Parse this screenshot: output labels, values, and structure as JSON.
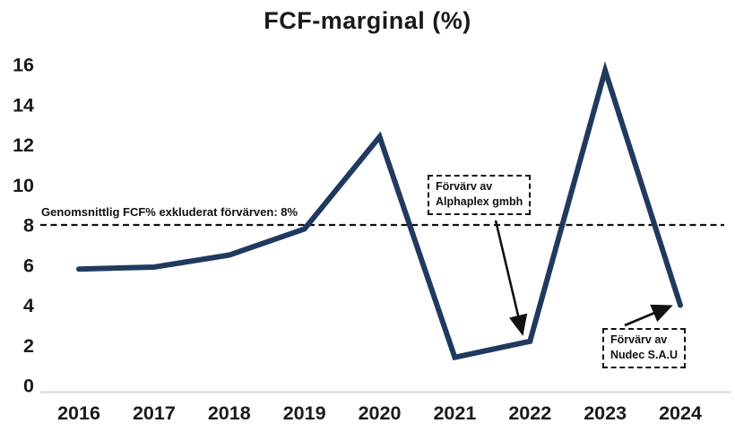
{
  "title": "FCF-marginal (%)",
  "avg_line_label": "Genomsnittlig FCF% exkluderat förvärven: 8%",
  "annotations": {
    "alphaplex": {
      "line1": "Förvärv av",
      "line2": "Alphaplex gmbh"
    },
    "nudec": {
      "line1": "Förvärv av",
      "line2": "Nudec S.A.U"
    }
  },
  "colors": {
    "line": "#1f3a5e",
    "text": "#1a1a1a",
    "axis": "#d6d6d6",
    "annotation": "#111111"
  },
  "chart_data": {
    "type": "line",
    "title": "FCF-marginal (%)",
    "xlabel": "",
    "ylabel": "",
    "categories": [
      "2016",
      "2017",
      "2018",
      "2019",
      "2020",
      "2021",
      "2022",
      "2023",
      "2024"
    ],
    "values": [
      5.8,
      5.9,
      6.5,
      7.8,
      12.4,
      1.4,
      2.2,
      15.7,
      4.0
    ],
    "ylim": [
      0,
      16
    ],
    "yticks": [
      0,
      2,
      4,
      6,
      8,
      10,
      12,
      14,
      16
    ],
    "grid": false,
    "legend": "none",
    "average_line": {
      "value": 8,
      "style": "dashed",
      "label": "Genomsnittlig FCF% exkluderat förvärven: 8%"
    },
    "annotations": [
      {
        "text": "Förvärv av Alphaplex gmbh",
        "points_to_year": "2022"
      },
      {
        "text": "Förvärv av Nudec S.A.U",
        "points_to_year": "2024"
      }
    ]
  }
}
